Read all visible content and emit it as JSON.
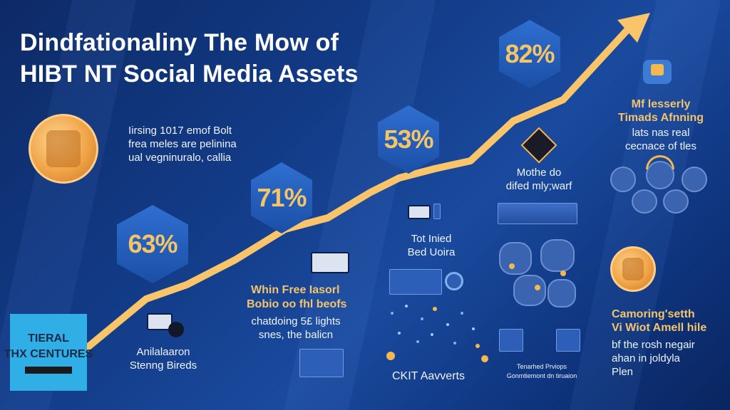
{
  "title": {
    "line1": "Dindfationaliny The Mow of",
    "line2": "HIBT NT Social Media Assets"
  },
  "stats": {
    "s82": "82%",
    "s53": "53%",
    "s71": "71%",
    "s63": "63%"
  },
  "blocks": {
    "intro": [
      "Iirsing 1017 emof Bolt",
      "frea meles are pelinina",
      "ual vegninuralo, callia"
    ],
    "mid_right": [
      "Mothe do",
      "difed mly;warf"
    ],
    "top_right": [
      "Mf lesserly",
      "Timads Afnning",
      "lats nas real",
      "cecnace of tles"
    ],
    "tot": [
      "Tot Inied",
      "Bed Uoira"
    ],
    "whin": [
      "Whin Free Iasorl",
      "Bobio oo fhl beofs",
      "chatdoing 5£ lights",
      "snes, the balicn"
    ],
    "anila": [
      "Anilalaaron",
      "Stenng Bireds"
    ],
    "ckit": "CKIT Aavverts",
    "tiny": [
      "Tenarhed Prviops",
      "Gonmtiemont dn tiruaion"
    ],
    "camo": [
      "Camoring'setth",
      "Vi Wiot Amell hile",
      "bf the rosh negair",
      "ahan in joldyla",
      "Plen"
    ]
  },
  "sign": {
    "line1": "TIERAL",
    "line2": "THX CENTURES"
  },
  "colors": {
    "accent_gold": "#f4c566",
    "arrow": "#f9c46a",
    "background": "#123a85"
  }
}
